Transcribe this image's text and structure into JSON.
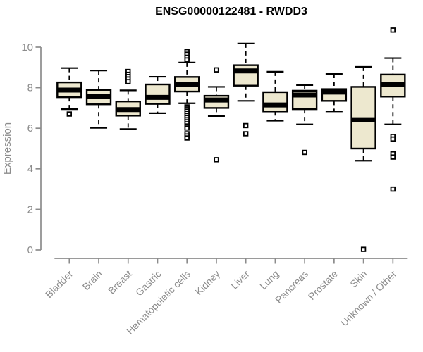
{
  "chart_data": {
    "type": "boxplot",
    "title": "ENSG00000122481 - RWDD3",
    "ylabel": "Expression",
    "xlabel": "",
    "y_ticks": [
      0,
      2,
      4,
      6,
      8,
      10
    ],
    "ylim": [
      -0.4,
      11.0
    ],
    "grid": "off",
    "legend": "none",
    "categories": [
      "Bladder",
      "Brain",
      "Breast",
      "Gastric",
      "Hematopoietic cells",
      "Kidney",
      "Liver",
      "Lung",
      "Pancreas",
      "Prostate",
      "Skin",
      "Unknown / Other"
    ],
    "boxes": [
      {
        "category": "Bladder",
        "whisker_low": 6.94,
        "q1": 7.53,
        "median": 7.88,
        "q3": 8.26,
        "whisker_high": 8.97,
        "outliers": [
          6.7
        ]
      },
      {
        "category": "Brain",
        "whisker_low": 6.02,
        "q1": 7.18,
        "median": 7.58,
        "q3": 7.89,
        "whisker_high": 8.85,
        "outliers": []
      },
      {
        "category": "Breast",
        "whisker_low": 5.96,
        "q1": 6.62,
        "median": 6.92,
        "q3": 7.32,
        "whisker_high": 7.87,
        "outliers": [
          8.8,
          8.66,
          8.55,
          8.43,
          8.3
        ]
      },
      {
        "category": "Gastric",
        "whisker_low": 6.74,
        "q1": 7.2,
        "median": 7.52,
        "q3": 8.16,
        "whisker_high": 8.54,
        "outliers": []
      },
      {
        "category": "Hematopoietic cells",
        "whisker_low": 7.23,
        "q1": 7.81,
        "median": 8.15,
        "q3": 8.53,
        "whisker_high": 9.24,
        "outliers": [
          9.78,
          9.65,
          9.5,
          9.37,
          7.05,
          6.95,
          6.84,
          6.74,
          6.63,
          6.53,
          6.42,
          6.32,
          6.22,
          6.11,
          6.01,
          5.73,
          5.62,
          5.52
        ]
      },
      {
        "category": "Kidney",
        "whisker_low": 6.6,
        "q1": 7.0,
        "median": 7.39,
        "q3": 7.6,
        "whisker_high": 8.04,
        "outliers": [
          8.88,
          4.45
        ]
      },
      {
        "category": "Liver",
        "whisker_low": 7.35,
        "q1": 8.1,
        "median": 8.83,
        "q3": 9.11,
        "whisker_high": 10.18,
        "outliers": [
          6.13,
          5.73
        ]
      },
      {
        "category": "Lung",
        "whisker_low": 6.37,
        "q1": 6.83,
        "median": 7.15,
        "q3": 7.78,
        "whisker_high": 8.79,
        "outliers": []
      },
      {
        "category": "Pancreas",
        "whisker_low": 6.19,
        "q1": 6.94,
        "median": 7.64,
        "q3": 7.85,
        "whisker_high": 8.13,
        "outliers": [
          4.81
        ]
      },
      {
        "category": "Prostate",
        "whisker_low": 6.83,
        "q1": 7.35,
        "median": 7.78,
        "q3": 7.93,
        "whisker_high": 8.68,
        "outliers": []
      },
      {
        "category": "Skin",
        "whisker_low": 4.4,
        "q1": 5.0,
        "median": 6.42,
        "q3": 8.04,
        "whisker_high": 9.03,
        "outliers": [
          0.03
        ]
      },
      {
        "category": "Unknown / Other",
        "whisker_low": 6.19,
        "q1": 7.56,
        "median": 8.16,
        "q3": 8.65,
        "whisker_high": 9.46,
        "outliers": [
          10.84,
          5.6,
          5.47,
          4.74,
          4.58,
          3.0
        ]
      }
    ],
    "style": {
      "box_fill": "#EDE8CF",
      "box_border": "#000000",
      "median_color": "#000000",
      "axis_color": "#8C8C8C",
      "title_color": "#000000",
      "outlier_shape": "open-square",
      "whisker_style": "dashed"
    }
  }
}
